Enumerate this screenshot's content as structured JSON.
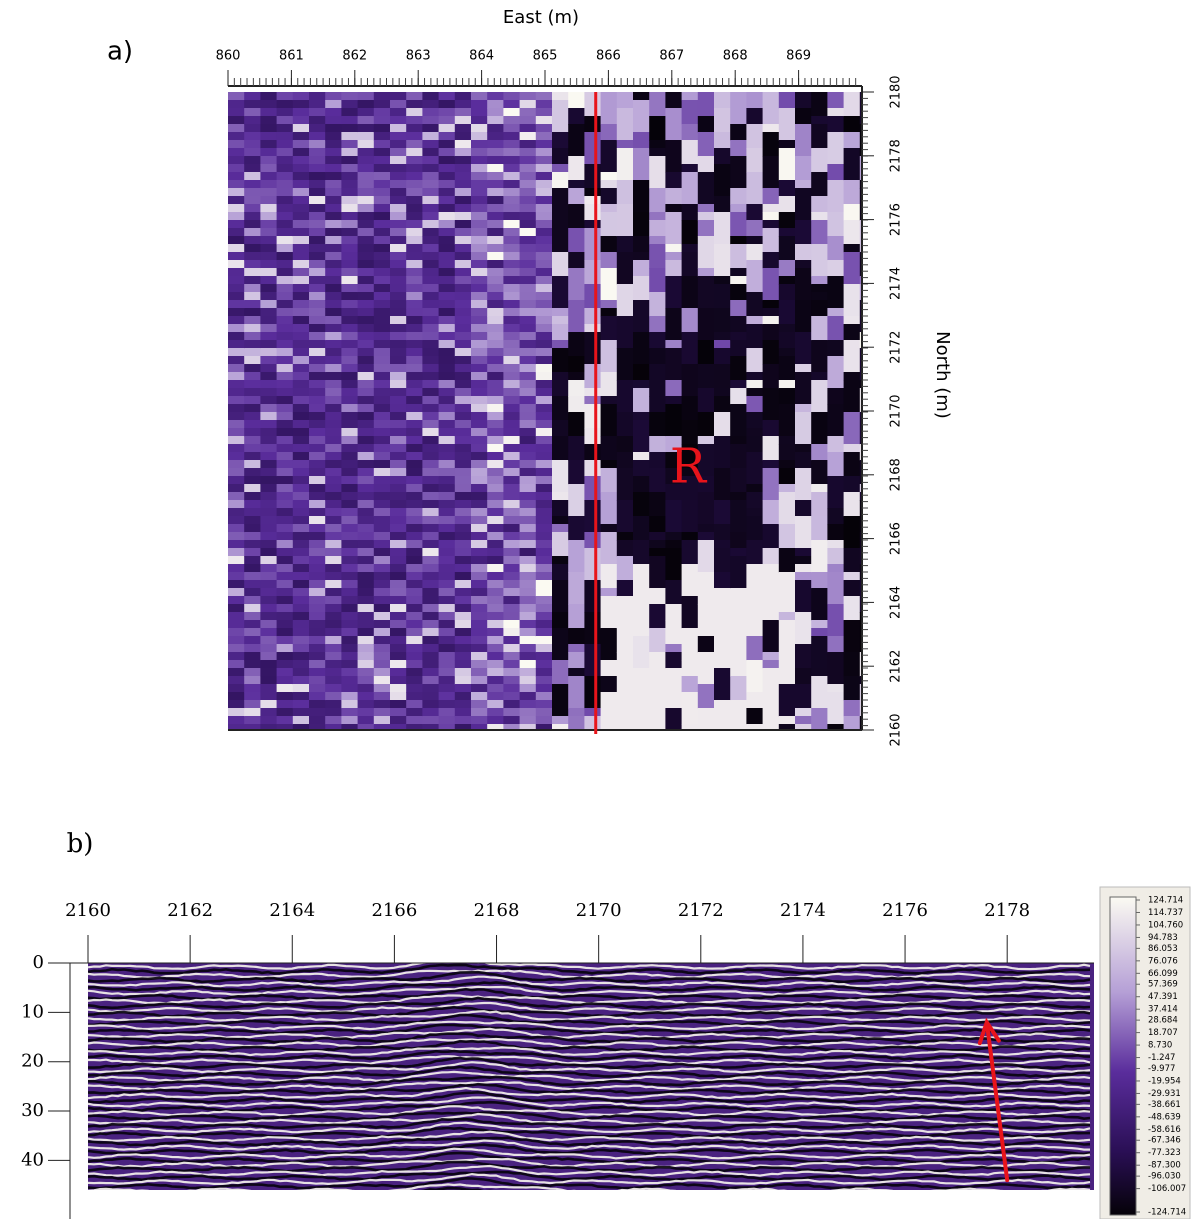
{
  "chart_data": [
    {
      "type": "heatmap",
      "panel_label": "a)",
      "xlabel": "East (m)",
      "ylabel": "North (m)",
      "annotation": "R",
      "xlim": [
        860,
        870
      ],
      "xticks": [
        860,
        861,
        862,
        863,
        864,
        865,
        866,
        867,
        868,
        869
      ],
      "ylim": [
        2160,
        2180
      ],
      "yticks": [
        2160,
        2162,
        2164,
        2166,
        2168,
        2170,
        2172,
        2174,
        2176,
        2178,
        2180
      ],
      "profile_line": 865.8,
      "line_color": "#e8141b"
    },
    {
      "type": "radargram",
      "panel_label": "b)",
      "xlim": [
        2160,
        2179.7
      ],
      "xticks": [
        2160,
        2162,
        2164,
        2166,
        2168,
        2170,
        2172,
        2174,
        2176,
        2178
      ],
      "ylim": [
        0,
        46
      ],
      "yticks": [
        0,
        10,
        20,
        30,
        40
      ],
      "arrow": {
        "from": [
          2178,
          44
        ],
        "to": [
          2177.6,
          12
        ]
      },
      "arrow_color": "#e8141b",
      "clim": [
        -124.714,
        124.714
      ],
      "colorbar_ticks": [
        124.714,
        114.737,
        {
          "value": 104.76,
          "label": "104.760"
        },
        94.783,
        86.053,
        76.076,
        66.099,
        57.369,
        47.391,
        37.414,
        28.684,
        18.707,
        {
          "value": 8.73,
          "label": "8.730"
        },
        -1.247,
        -9.977,
        -19.954,
        -29.931,
        -38.661,
        -48.639,
        -58.616,
        -67.346,
        -77.323,
        {
          "value": -87.3,
          "label": "-87.300"
        },
        {
          "value": -96.03,
          "label": "-96.030"
        },
        -106.007,
        -124.714
      ]
    }
  ]
}
